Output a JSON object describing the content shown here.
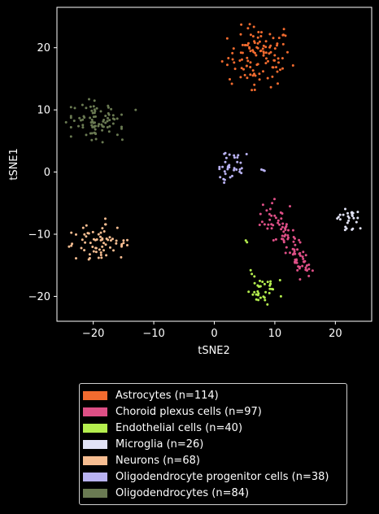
{
  "chart_data": {
    "type": "scatter",
    "xlabel": "tSNE2",
    "ylabel": "tSNE1",
    "xlim": [
      -26,
      26
    ],
    "ylim": [
      -24,
      26.5
    ],
    "xticks": [
      -20,
      -10,
      0,
      10,
      20
    ],
    "yticks": [
      -20,
      -10,
      0,
      10,
      20
    ],
    "xtick_labels": [
      "−20",
      "−10",
      "0",
      "10",
      "20"
    ],
    "ytick_labels": [
      "−20",
      "−10",
      "0",
      "10",
      "20"
    ],
    "legend_position": "below",
    "series": [
      {
        "name": "Astrocytes (n=114)",
        "color": "#f26b2f",
        "n": 114,
        "center": [
          7.5,
          18.5
        ],
        "spread": [
          2.6,
          2.4
        ],
        "extra_points": [
          [
            1.3,
            17.8
          ],
          [
            2.9,
            14.2
          ],
          [
            6.2,
            13.2
          ],
          [
            11.5,
            23.0
          ]
        ]
      },
      {
        "name": "Choroid plexus cells (n=97)",
        "color": "#de4f86",
        "n": 97,
        "segment": [
          [
            9.0,
            -6.0
          ],
          [
            15.5,
            -16.0
          ]
        ],
        "spread": [
          0.9,
          0.9
        ],
        "extra_points": [
          [
            12.5,
            -5.5
          ],
          [
            7.5,
            -8.5
          ]
        ]
      },
      {
        "name": "Endothelial cells (n=40)",
        "color": "#b4ee4e",
        "n": 40,
        "center": [
          8.0,
          -19.0
        ],
        "spread": [
          1.3,
          1.1
        ],
        "extra_points": [
          [
            5.2,
            -11.0
          ],
          [
            5.4,
            -11.3
          ],
          [
            6.0,
            -15.8
          ],
          [
            6.2,
            -16.4
          ],
          [
            11.0,
            -20.0
          ]
        ]
      },
      {
        "name": "Microglia (n=26)",
        "color": "#e1e2f5",
        "n": 26,
        "center": [
          22.3,
          -7.6
        ],
        "spread": [
          0.9,
          0.8
        ],
        "extra_points": []
      },
      {
        "name": "Neurons (n=68)",
        "color": "#f6bd91",
        "n": 68,
        "center": [
          -19.0,
          -11.5
        ],
        "spread": [
          2.1,
          1.4
        ],
        "extra_points": [
          [
            -24.0,
            -12.0
          ],
          [
            -15.0,
            -11.0
          ],
          [
            -18.0,
            -7.5
          ]
        ]
      },
      {
        "name": "Oligodendrocyte progenitor cells (n=38)",
        "color": "#b9b2f2",
        "n": 38,
        "center": [
          2.7,
          0.6
        ],
        "spread": [
          1.2,
          1.5
        ],
        "extra_points": [
          [
            7.8,
            0.4
          ],
          [
            8.1,
            0.3
          ],
          [
            8.3,
            0.2
          ]
        ]
      },
      {
        "name": "Oligodendrocytes (n=84)",
        "color": "#6a7a52",
        "n": 84,
        "center": [
          -19.5,
          8.2
        ],
        "spread": [
          1.9,
          1.6
        ],
        "extra_points": [
          [
            -13.0,
            10.0
          ],
          [
            -16.0,
            6.0
          ],
          [
            -15.2,
            5.2
          ],
          [
            -24.5,
            8.0
          ]
        ]
      }
    ]
  }
}
